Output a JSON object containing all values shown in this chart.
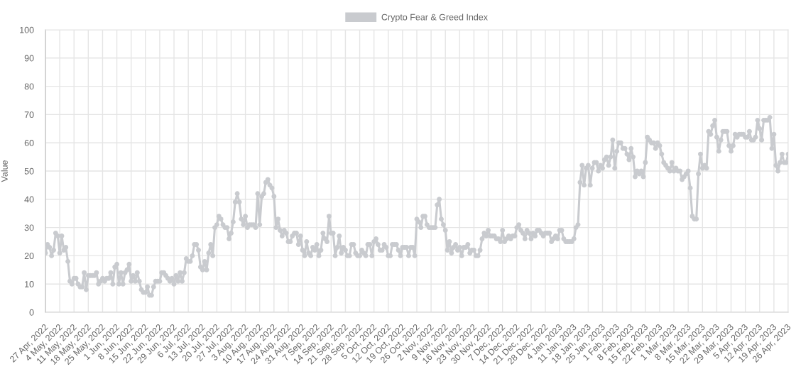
{
  "chart_data": {
    "type": "line",
    "ylabel": "Value",
    "categories": [
      "27 Apr, 2022",
      null,
      null,
      null,
      null,
      null,
      null,
      "4 May, 2022",
      null,
      null,
      null,
      null,
      null,
      null,
      "11 May, 2022",
      null,
      null,
      null,
      null,
      null,
      null,
      "18 May, 2022",
      null,
      null,
      null,
      null,
      null,
      null,
      "25 May, 2022",
      null,
      null,
      null,
      null,
      null,
      null,
      "1 Jun, 2022",
      null,
      null,
      null,
      null,
      null,
      null,
      "8 Jun, 2022",
      null,
      null,
      null,
      null,
      null,
      null,
      "15 Jun, 2022",
      null,
      null,
      null,
      null,
      null,
      null,
      "22 Jun, 2022",
      null,
      null,
      null,
      null,
      null,
      null,
      "29 Jun, 2022",
      null,
      null,
      null,
      null,
      null,
      null,
      "6 Jul, 2022",
      null,
      null,
      null,
      null,
      null,
      null,
      "13 Jul, 2022",
      null,
      null,
      null,
      null,
      null,
      null,
      "20 Jul, 2022",
      null,
      null,
      null,
      null,
      null,
      null,
      "27 Jul, 2022",
      null,
      null,
      null,
      null,
      null,
      null,
      "3 Aug, 2022",
      null,
      null,
      null,
      null,
      null,
      null,
      "10 Aug, 2022",
      null,
      null,
      null,
      null,
      null,
      null,
      "17 Aug, 2022",
      null,
      null,
      null,
      null,
      null,
      null,
      "24 Aug, 2022",
      null,
      null,
      null,
      null,
      null,
      null,
      "31 Aug, 2022",
      null,
      null,
      null,
      null,
      null,
      null,
      "7 Sep, 2022",
      null,
      null,
      null,
      null,
      null,
      null,
      "14 Sep, 2022",
      null,
      null,
      null,
      null,
      null,
      null,
      "21 Sep, 2022",
      null,
      null,
      null,
      null,
      null,
      null,
      "28 Sep, 2022",
      null,
      null,
      null,
      null,
      null,
      null,
      "5 Oct, 2022",
      null,
      null,
      null,
      null,
      null,
      null,
      "12 Oct, 2022",
      null,
      null,
      null,
      null,
      null,
      null,
      "19 Oct, 2022",
      null,
      null,
      null,
      null,
      null,
      null,
      "26 Oct, 2022",
      null,
      null,
      null,
      null,
      null,
      null,
      "2 Nov, 2022",
      null,
      null,
      null,
      null,
      null,
      null,
      "9 Nov, 2022",
      null,
      null,
      null,
      null,
      null,
      null,
      "16 Nov, 2022",
      null,
      null,
      null,
      null,
      null,
      null,
      "23 Nov, 2022",
      null,
      null,
      null,
      null,
      null,
      null,
      "30 Nov, 2022",
      null,
      null,
      null,
      null,
      null,
      null,
      "7 Dec, 2022",
      null,
      null,
      null,
      null,
      null,
      null,
      "14 Dec, 2022",
      null,
      null,
      null,
      null,
      null,
      null,
      "21 Dec, 2022",
      null,
      null,
      null,
      null,
      null,
      null,
      "28 Dec, 2022",
      null,
      null,
      null,
      null,
      null,
      null,
      "4 Jan, 2023",
      null,
      null,
      null,
      null,
      null,
      null,
      "11 Jan, 2023",
      null,
      null,
      null,
      null,
      null,
      null,
      "18 Jan, 2023",
      null,
      null,
      null,
      null,
      null,
      null,
      "25 Jan, 2023",
      null,
      null,
      null,
      null,
      null,
      null,
      "1 Feb, 2023",
      null,
      null,
      null,
      null,
      null,
      null,
      "8 Feb, 2023",
      null,
      null,
      null,
      null,
      null,
      null,
      "15 Feb, 2023",
      null,
      null,
      null,
      null,
      null,
      null,
      "22 Feb, 2023",
      null,
      null,
      null,
      null,
      null,
      null,
      "1 Mar, 2023",
      null,
      null,
      null,
      null,
      null,
      null,
      "8 Mar, 2023",
      null,
      null,
      null,
      null,
      null,
      null,
      "15 Mar, 2023",
      null,
      null,
      null,
      null,
      null,
      null,
      "22 Mar, 2023",
      null,
      null,
      null,
      null,
      null,
      null,
      "29 Mar, 2023",
      null,
      null,
      null,
      null,
      null,
      null,
      "5 Apr, 2023",
      null,
      null,
      null,
      null,
      null,
      null,
      "12 Apr, 2023",
      null,
      null,
      null,
      null,
      null,
      null,
      "19 Apr, 2023",
      null,
      null,
      null,
      null,
      null,
      null,
      "26 Apr, 2023"
    ],
    "series": [
      {
        "name": "Crypto Fear & Greed Index",
        "color": "#c9cbcf",
        "values": [
          21,
          24,
          23,
          20,
          22,
          28,
          27,
          21,
          27,
          22,
          23,
          18,
          11,
          10,
          12,
          12,
          10,
          9,
          9,
          14,
          8,
          13,
          13,
          13,
          13,
          14,
          10,
          11,
          12,
          11,
          12,
          12,
          14,
          10,
          16,
          17,
          10,
          14,
          10,
          14,
          15,
          17,
          11,
          13,
          11,
          14,
          11,
          8,
          7,
          7,
          9,
          6,
          6,
          9,
          11,
          11,
          11,
          14,
          14,
          13,
          12,
          11,
          12,
          10,
          13,
          11,
          14,
          11,
          14,
          19,
          18,
          18,
          20,
          24,
          24,
          22,
          16,
          15,
          18,
          15,
          21,
          24,
          20,
          30,
          31,
          34,
          33,
          31,
          30,
          30,
          26,
          28,
          32,
          39,
          42,
          39,
          33,
          31,
          34,
          30,
          31,
          31,
          31,
          30,
          42,
          31,
          41,
          42,
          46,
          47,
          45,
          44,
          41,
          30,
          33,
          29,
          27,
          29,
          28,
          25,
          25,
          27,
          28,
          28,
          24,
          27,
          22,
          20,
          25,
          21,
          20,
          23,
          22,
          24,
          20,
          22,
          28,
          26,
          25,
          34,
          28,
          28,
          20,
          23,
          27,
          21,
          23,
          22,
          20,
          20,
          24,
          24,
          21,
          20,
          20,
          22,
          21,
          20,
          24,
          24,
          20,
          25,
          26,
          24,
          22,
          22,
          24,
          23,
          20,
          20,
          24,
          24,
          24,
          22,
          20,
          23,
          23,
          23,
          20,
          23,
          23,
          20,
          33,
          32,
          30,
          34,
          34,
          31,
          30,
          30,
          30,
          30,
          38,
          40,
          33,
          31,
          29,
          22,
          25,
          21,
          23,
          24,
          22,
          23,
          20,
          23,
          23,
          24,
          21,
          22,
          22,
          20,
          20,
          22,
          26,
          28,
          27,
          29,
          27,
          27,
          27,
          26,
          26,
          25,
          29,
          25,
          26,
          27,
          26,
          27,
          27,
          30,
          31,
          29,
          28,
          26,
          29,
          28,
          26,
          28,
          27,
          29,
          29,
          28,
          27,
          28,
          28,
          28,
          25,
          26,
          27,
          26,
          29,
          29,
          26,
          25,
          25,
          25,
          25,
          26,
          30,
          31,
          46,
          52,
          45,
          51,
          52,
          45,
          51,
          53,
          53,
          50,
          52,
          51,
          54,
          55,
          52,
          55,
          61,
          51,
          57,
          60,
          60,
          58,
          58,
          56,
          54,
          58,
          55,
          48,
          50,
          49,
          50,
          48,
          53,
          62,
          61,
          60,
          60,
          58,
          60,
          59,
          56,
          53,
          52,
          51,
          50,
          53,
          50,
          51,
          50,
          50,
          47,
          48,
          49,
          50,
          44,
          34,
          33,
          33,
          49,
          56,
          51,
          52,
          51,
          64,
          63,
          66,
          68,
          62,
          57,
          61,
          64,
          64,
          64,
          59,
          57,
          59,
          63,
          62,
          63,
          63,
          63,
          62,
          62,
          64,
          61,
          61,
          62,
          68,
          65,
          61,
          68,
          68,
          68,
          69,
          58,
          63,
          52,
          50,
          53,
          56,
          53,
          53,
          56
        ]
      }
    ],
    "ylim": [
      0,
      100
    ],
    "yticks": [
      0,
      10,
      20,
      30,
      40,
      50,
      60,
      70,
      80,
      90,
      100
    ],
    "grid": true,
    "legend": "top",
    "marker": "circle",
    "line_style": "solid"
  }
}
